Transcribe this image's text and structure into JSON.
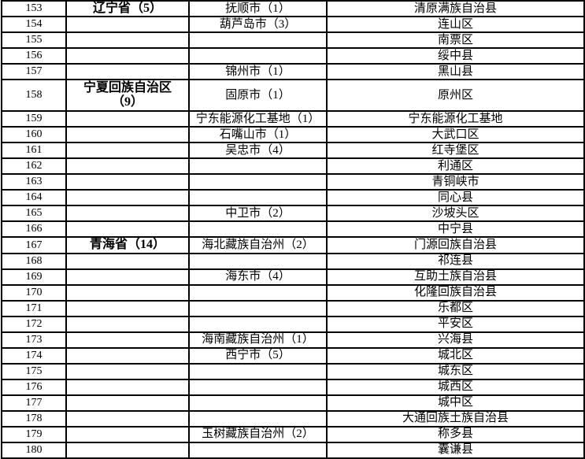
{
  "styles": {
    "border_color": "#000000",
    "text_color": "#000000",
    "background_color": "#ffffff"
  },
  "table": {
    "row_number_start": "153",
    "row_number_end": "180",
    "rows": [
      {
        "no": "153",
        "province": "辽宁省（5）",
        "city": "抚顺市（1）",
        "county": "清原满族自治县"
      },
      {
        "no": "154",
        "province": "",
        "city": "葫芦岛市（3）",
        "county": "连山区"
      },
      {
        "no": "155",
        "province": "",
        "city": "",
        "county": "南票区"
      },
      {
        "no": "156",
        "province": "",
        "city": "",
        "county": "绥中县"
      },
      {
        "no": "157",
        "province": "",
        "city": "锦州市（1）",
        "county": "黑山县"
      },
      {
        "no": "158",
        "province": "宁夏回族自治区\n（9）",
        "city": "固原市（1）",
        "county": "原州区"
      },
      {
        "no": "159",
        "province": "",
        "city": "宁东能源化工基地（1）",
        "county": "宁东能源化工基地"
      },
      {
        "no": "160",
        "province": "",
        "city": "石嘴山市（1）",
        "county": "大武口区"
      },
      {
        "no": "161",
        "province": "",
        "city": "吴忠市（4）",
        "county": "红寺堡区"
      },
      {
        "no": "162",
        "province": "",
        "city": "",
        "county": "利通区"
      },
      {
        "no": "163",
        "province": "",
        "city": "",
        "county": "青铜峡市"
      },
      {
        "no": "164",
        "province": "",
        "city": "",
        "county": "同心县"
      },
      {
        "no": "165",
        "province": "",
        "city": "中卫市（2）",
        "county": "沙坡头区"
      },
      {
        "no": "166",
        "province": "",
        "city": "",
        "county": "中宁县"
      },
      {
        "no": "167",
        "province": "青海省（14）",
        "city": "海北藏族自治州（2）",
        "county": "门源回族自治县"
      },
      {
        "no": "168",
        "province": "",
        "city": "",
        "county": "祁连县"
      },
      {
        "no": "169",
        "province": "",
        "city": "海东市（4）",
        "county": "互助土族自治县"
      },
      {
        "no": "170",
        "province": "",
        "city": "",
        "county": "化隆回族自治县"
      },
      {
        "no": "171",
        "province": "",
        "city": "",
        "county": "乐都区"
      },
      {
        "no": "172",
        "province": "",
        "city": "",
        "county": "平安区"
      },
      {
        "no": "173",
        "province": "",
        "city": "海南藏族自治州（1）",
        "county": "兴海县"
      },
      {
        "no": "174",
        "province": "",
        "city": "西宁市（5）",
        "county": "城北区"
      },
      {
        "no": "175",
        "province": "",
        "city": "",
        "county": "城东区"
      },
      {
        "no": "176",
        "province": "",
        "city": "",
        "county": "城西区"
      },
      {
        "no": "177",
        "province": "",
        "city": "",
        "county": "城中区"
      },
      {
        "no": "178",
        "province": "",
        "city": "",
        "county": "大通回族土族自治县"
      },
      {
        "no": "179",
        "province": "",
        "city": "玉树藏族自治州（2）",
        "county": "称多县"
      },
      {
        "no": "180",
        "province": "",
        "city": "",
        "county": "囊谦县"
      }
    ]
  }
}
